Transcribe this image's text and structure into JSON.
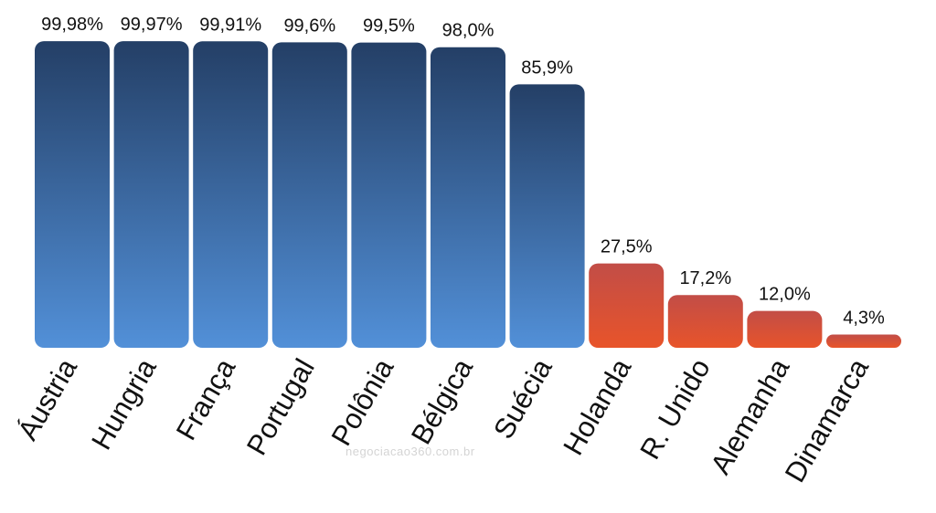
{
  "chart_data": {
    "type": "bar",
    "title": "",
    "xlabel": "",
    "ylabel": "",
    "ylim": [
      0,
      100
    ],
    "grid": false,
    "legend": "none",
    "categories": [
      "Áustria",
      "Hungria",
      "França",
      "Portugal",
      "Polônia",
      "Bélgica",
      "Suécia",
      "Holanda",
      "R. Unido",
      "Alemanha",
      "Dinamarca"
    ],
    "values": [
      99.98,
      99.97,
      99.91,
      99.6,
      99.5,
      98.0,
      85.9,
      27.5,
      17.2,
      12.0,
      4.3
    ],
    "value_labels": [
      "99,98%",
      "99,97%",
      "99,91%",
      "99,6%",
      "99,5%",
      "98,0%",
      "85,9%",
      "27,5%",
      "17,2%",
      "12,0%",
      "4,3%"
    ],
    "bar_groups": [
      "blue",
      "blue",
      "blue",
      "blue",
      "blue",
      "blue",
      "blue",
      "orange",
      "orange",
      "orange",
      "orange"
    ],
    "colors": {
      "blue_top": "#243f66",
      "blue_bottom": "#5290d8",
      "orange_top": "#c24d47",
      "orange_bottom": "#e8542a"
    }
  },
  "watermark": "negociacao360.com.br"
}
